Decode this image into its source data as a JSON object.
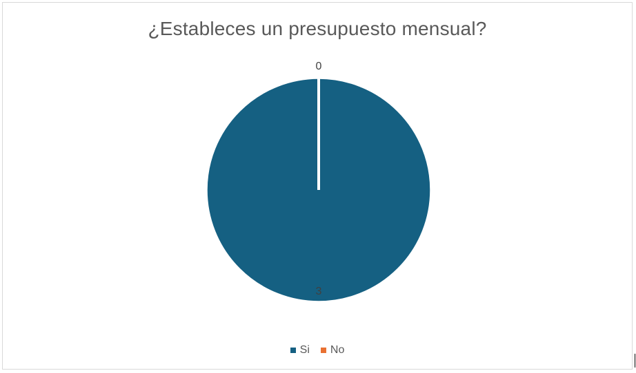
{
  "chart_data": {
    "type": "pie",
    "title": "¿Estableces un presupuesto mensual?",
    "categories": [
      "Si",
      "No"
    ],
    "values": [
      3,
      0
    ],
    "colors": [
      "#156082",
      "#E97132"
    ],
    "data_labels": [
      "3",
      "0"
    ],
    "legend": "bottom"
  }
}
